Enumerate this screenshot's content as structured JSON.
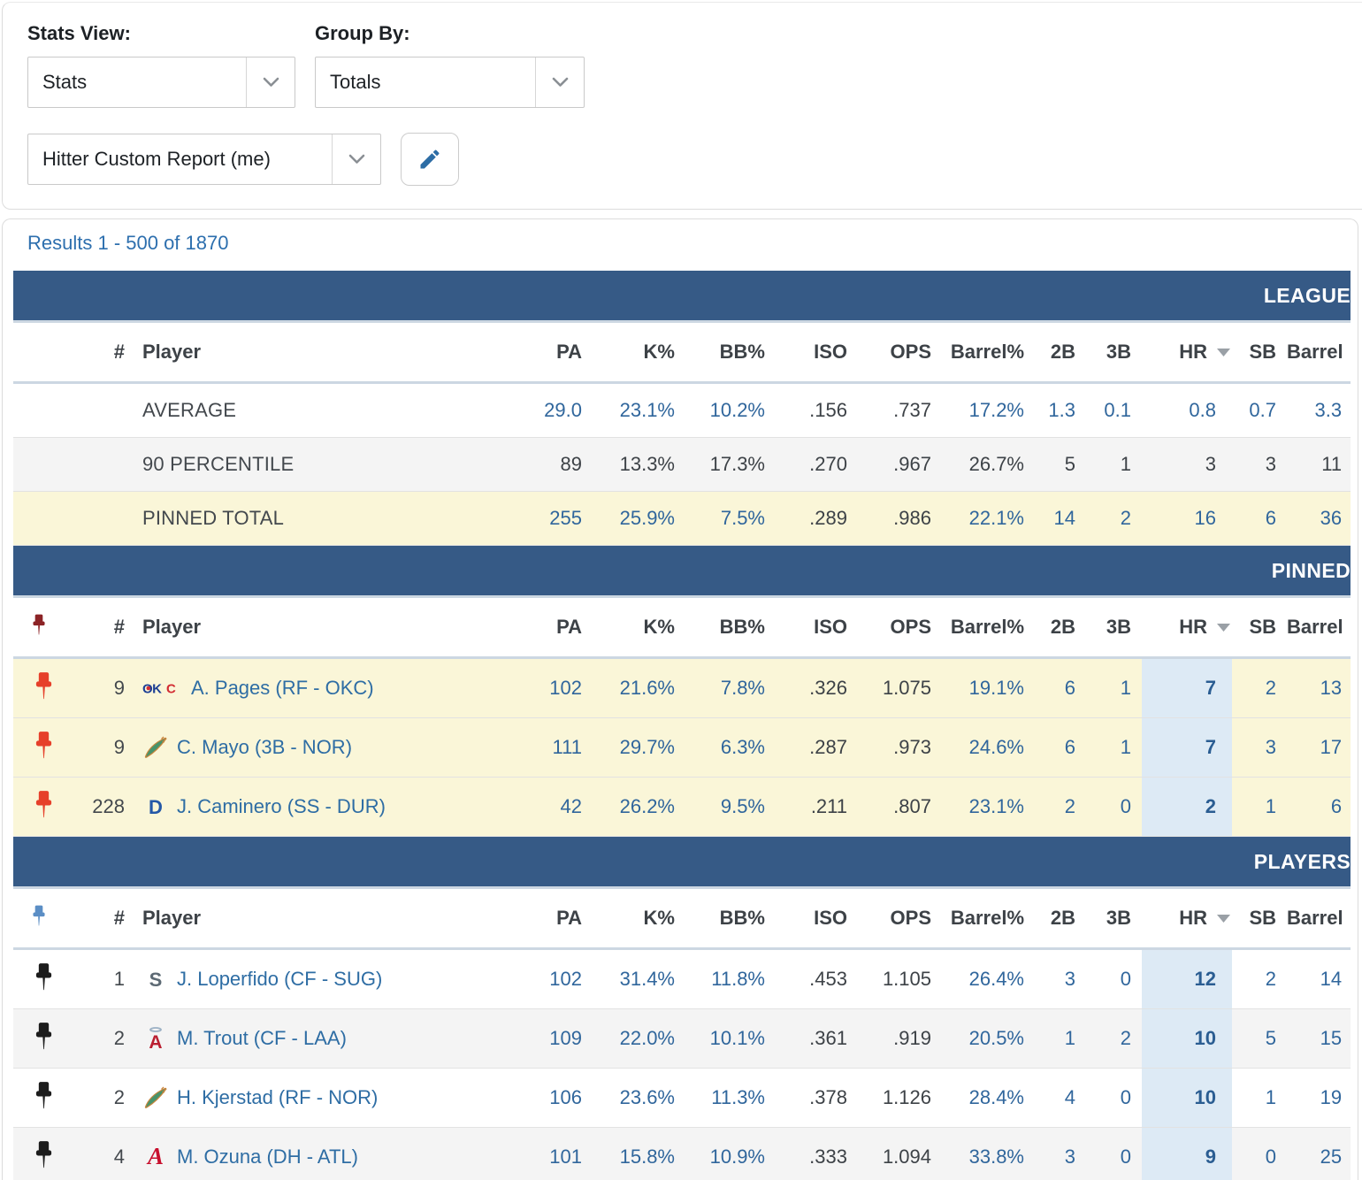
{
  "filters": {
    "stats_view": {
      "label": "Stats View:",
      "value": "Stats"
    },
    "group_by": {
      "label": "Group By:",
      "value": "Totals"
    },
    "report": {
      "value": "Hitter Custom Report (me)"
    }
  },
  "results": {
    "text": "Results 1 - 500 of 1870"
  },
  "colors": {
    "section_bar": "#365a86",
    "link_blue": "#2d6fae",
    "value_blue": "#30669c",
    "dark_text": "#3d4247",
    "pinned_row_bg": "#faf6d8",
    "sorted_col_bg": "#ddeaf5",
    "pin_red": "#e6402a",
    "pin_dark_red": "#8c2326",
    "pin_blue": "#5b8ec5",
    "pin_black": "#1c1c1c",
    "pencil_blue": "#2d6da5"
  },
  "table": {
    "columns": [
      {
        "key": "pin",
        "label": ""
      },
      {
        "key": "rank",
        "label": "#"
      },
      {
        "key": "player",
        "label": "Player"
      },
      {
        "key": "pa",
        "label": "PA"
      },
      {
        "key": "k_pct",
        "label": "K%"
      },
      {
        "key": "bb_pct",
        "label": "BB%"
      },
      {
        "key": "iso",
        "label": "ISO"
      },
      {
        "key": "ops",
        "label": "OPS"
      },
      {
        "key": "barrel_pct",
        "label": "Barrel%"
      },
      {
        "key": "doubles",
        "label": "2B"
      },
      {
        "key": "triples",
        "label": "3B"
      },
      {
        "key": "hr",
        "label": "HR",
        "sorted": "desc"
      },
      {
        "key": "sb",
        "label": "SB"
      },
      {
        "key": "barrel",
        "label": "Barrel"
      }
    ],
    "sections": [
      {
        "id": "league",
        "title": "LEAGUE",
        "header_pin": null,
        "sorted_col_highlight": false,
        "rows": [
          {
            "label": "AVERAGE",
            "row_bg": "white",
            "values": [
              "29.0",
              "23.1%",
              "10.2%",
              ".156",
              ".737",
              "17.2%",
              "1.3",
              "0.1",
              "0.8",
              "0.7",
              "3.3"
            ],
            "dark_value_indexes": [
              3,
              4
            ]
          },
          {
            "label": "90 PERCENTILE",
            "row_bg": "gray",
            "values": [
              "89",
              "13.3%",
              "17.3%",
              ".270",
              ".967",
              "26.7%",
              "5",
              "1",
              "3",
              "3",
              "11"
            ],
            "all_dark": true
          },
          {
            "label": "PINNED TOTAL",
            "row_bg": "yellow",
            "values": [
              "255",
              "25.9%",
              "7.5%",
              ".289",
              ".986",
              "22.1%",
              "14",
              "2",
              "16",
              "6",
              "36"
            ],
            "dark_value_indexes": [
              3,
              4
            ]
          }
        ]
      },
      {
        "id": "pinned",
        "title": "PINNED",
        "header_pin": "dark-red",
        "sorted_col_highlight": true,
        "rows": [
          {
            "pin": "red",
            "rank": "9",
            "team": "OKC",
            "player": "A. Pages (RF - OKC)",
            "row_bg": "yellow",
            "values": [
              "102",
              "21.6%",
              "7.8%",
              ".326",
              "1.075",
              "19.1%",
              "6",
              "1",
              "7",
              "2",
              "13"
            ],
            "dark_value_indexes": [
              3,
              4
            ]
          },
          {
            "pin": "red",
            "rank": "9",
            "team": "NOR",
            "player": "C. Mayo (3B - NOR)",
            "row_bg": "yellow",
            "values": [
              "111",
              "29.7%",
              "6.3%",
              ".287",
              ".973",
              "24.6%",
              "6",
              "1",
              "7",
              "3",
              "17"
            ],
            "dark_value_indexes": [
              3,
              4
            ]
          },
          {
            "pin": "red",
            "rank": "228",
            "team": "DUR",
            "player": "J. Caminero (SS - DUR)",
            "row_bg": "yellow",
            "values": [
              "42",
              "26.2%",
              "9.5%",
              ".211",
              ".807",
              "23.1%",
              "2",
              "0",
              "2",
              "1",
              "6"
            ],
            "dark_value_indexes": [
              3,
              4
            ]
          }
        ]
      },
      {
        "id": "players",
        "title": "PLAYERS",
        "header_pin": "blue",
        "sorted_col_highlight": true,
        "rows": [
          {
            "pin": "black",
            "rank": "1",
            "team": "SUG",
            "player": "J. Loperfido (CF - SUG)",
            "row_bg": "white",
            "values": [
              "102",
              "31.4%",
              "11.8%",
              ".453",
              "1.105",
              "26.4%",
              "3",
              "0",
              "12",
              "2",
              "14"
            ],
            "dark_value_indexes": [
              3,
              4
            ]
          },
          {
            "pin": "black",
            "rank": "2",
            "team": "LAA",
            "player": "M. Trout (CF - LAA)",
            "row_bg": "gray",
            "values": [
              "109",
              "22.0%",
              "10.1%",
              ".361",
              ".919",
              "20.5%",
              "1",
              "2",
              "10",
              "5",
              "15"
            ],
            "dark_value_indexes": [
              3,
              4
            ]
          },
          {
            "pin": "black",
            "rank": "2",
            "team": "NOR",
            "player": "H. Kjerstad (RF - NOR)",
            "row_bg": "white",
            "values": [
              "106",
              "23.6%",
              "11.3%",
              ".378",
              "1.126",
              "28.4%",
              "4",
              "0",
              "10",
              "1",
              "19"
            ],
            "dark_value_indexes": [
              3,
              4
            ]
          },
          {
            "pin": "black",
            "rank": "4",
            "team": "ATL",
            "player": "M. Ozuna (DH - ATL)",
            "row_bg": "gray",
            "values": [
              "101",
              "15.8%",
              "10.9%",
              ".333",
              "1.094",
              "33.8%",
              "3",
              "0",
              "9",
              "0",
              "25"
            ],
            "dark_value_indexes": [
              3,
              4
            ]
          }
        ]
      }
    ]
  },
  "team_logos": {
    "OKC": {
      "style": "wordmark",
      "text": "OKC",
      "primary": "#1c3f94",
      "accent": "#d22b32"
    },
    "NOR": {
      "style": "creature",
      "text": "",
      "primary": "#47936b",
      "accent": "#c8853d"
    },
    "DUR": {
      "style": "letter",
      "text": "D",
      "primary": "#2458a7",
      "accent": "#222222"
    },
    "SUG": {
      "style": "letter",
      "text": "S",
      "primary": "#5d6a74",
      "accent": "#49b0bd"
    },
    "LAA": {
      "style": "letter-halo",
      "text": "A",
      "primary": "#ba1f31",
      "accent": "#9bb0c4"
    },
    "ATL": {
      "style": "letter-script",
      "text": "A",
      "primary": "#c8102e",
      "accent": "#13274f"
    }
  }
}
